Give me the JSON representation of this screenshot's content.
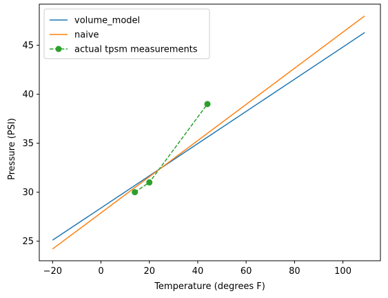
{
  "chart_data": {
    "type": "line",
    "xlabel": "Temperature (degrees F)",
    "ylabel": "Pressure (PSI)",
    "xlim": [
      -25.5,
      115.5
    ],
    "ylim": [
      23.0,
      49.2
    ],
    "xticks": [
      -20,
      0,
      20,
      40,
      60,
      80,
      100
    ],
    "yticks": [
      25,
      30,
      35,
      40,
      45
    ],
    "legend": "top-left",
    "grid": false,
    "series": [
      {
        "name": "volume_model",
        "color": "#1f77b4",
        "style": "solid",
        "marker": "none",
        "x": [
          -20,
          109
        ],
        "y": [
          25.1,
          46.3
        ]
      },
      {
        "name": "naive",
        "color": "#ff7f0e",
        "style": "solid",
        "marker": "none",
        "x": [
          -20,
          109
        ],
        "y": [
          24.2,
          48.0
        ]
      },
      {
        "name": "actual tpsm measurements",
        "color": "#2ca02c",
        "style": "dashed",
        "marker": "circle",
        "x": [
          14,
          20,
          44
        ],
        "y": [
          30.0,
          31.0,
          39.0
        ]
      }
    ]
  }
}
